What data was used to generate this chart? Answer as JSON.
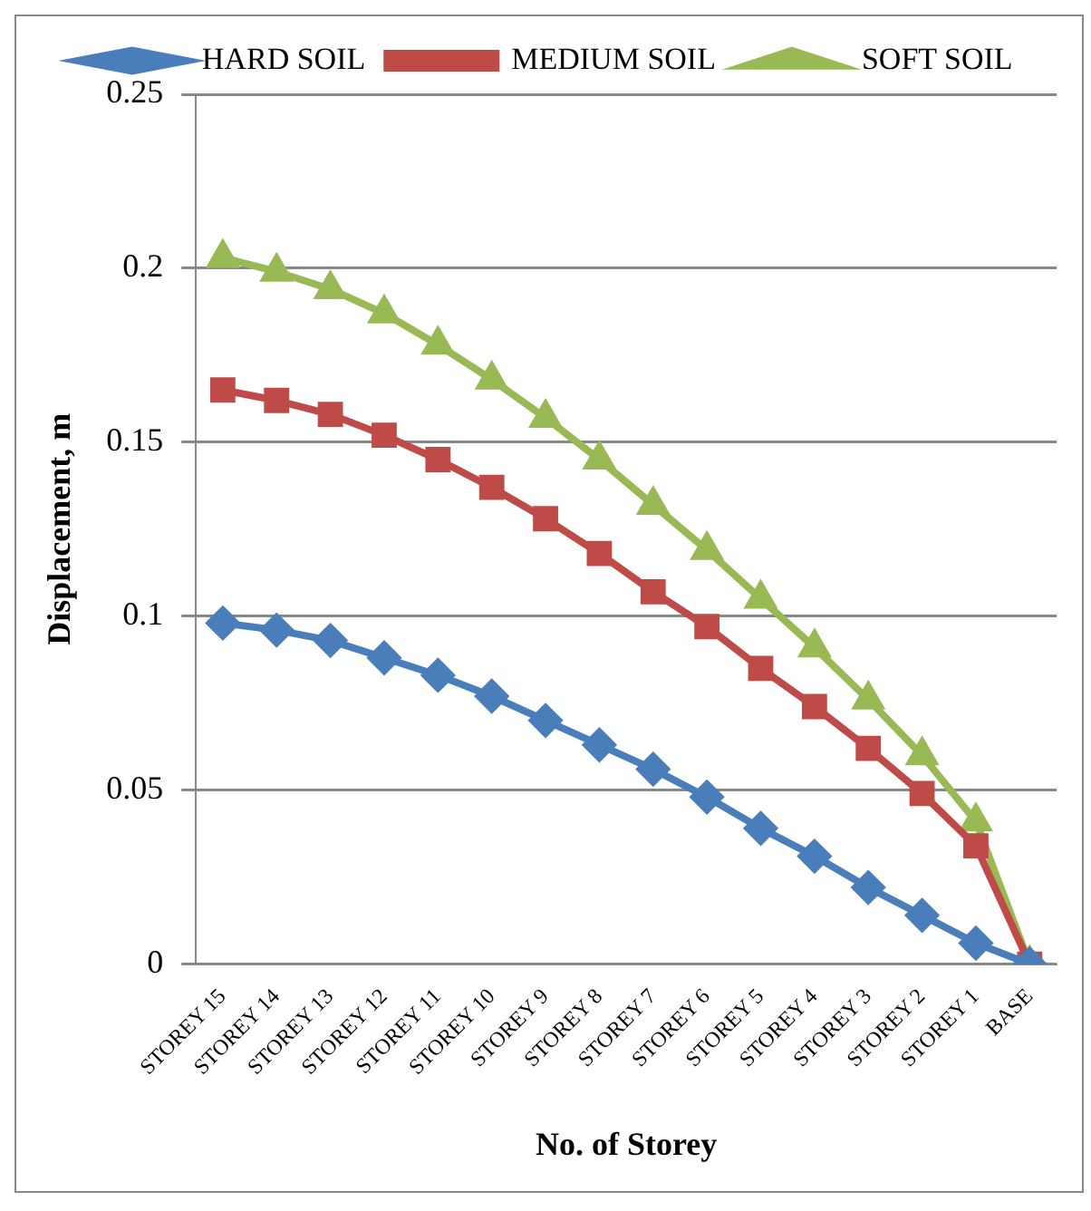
{
  "chart_data": {
    "type": "line",
    "xlabel": "No. of Storey",
    "ylabel": "Displacement, m",
    "categories": [
      "STOREY 15",
      "STOREY 14",
      "STOREY 13",
      "STOREY 12",
      "STOREY 11",
      "STOREY 10",
      "STOREY 9",
      "STOREY 8",
      "STOREY 7",
      "STOREY 6",
      "STOREY 5",
      "STOREY 4",
      "STOREY 3",
      "STOREY 2",
      "STOREY 1",
      "BASE"
    ],
    "series": [
      {
        "name": "HARD SOIL",
        "color": "#4a7ebb",
        "marker": "diamond",
        "values": [
          0.098,
          0.096,
          0.093,
          0.088,
          0.083,
          0.077,
          0.07,
          0.063,
          0.056,
          0.048,
          0.039,
          0.031,
          0.022,
          0.014,
          0.006,
          0
        ]
      },
      {
        "name": "MEDIUM SOIL",
        "color": "#be4b48",
        "marker": "square",
        "values": [
          0.165,
          0.162,
          0.158,
          0.152,
          0.145,
          0.137,
          0.128,
          0.118,
          0.107,
          0.097,
          0.085,
          0.074,
          0.062,
          0.049,
          0.034,
          0
        ]
      },
      {
        "name": "SOFT SOIL",
        "color": "#98b954",
        "marker": "triangle",
        "values": [
          0.203,
          0.199,
          0.194,
          0.187,
          0.178,
          0.168,
          0.157,
          0.145,
          0.132,
          0.119,
          0.105,
          0.091,
          0.076,
          0.06,
          0.041,
          0
        ]
      }
    ],
    "ylim": [
      0,
      0.25
    ],
    "yticks": [
      0,
      0.05,
      0.1,
      0.15,
      0.2,
      0.25
    ],
    "grid": "y",
    "legend": "top"
  }
}
